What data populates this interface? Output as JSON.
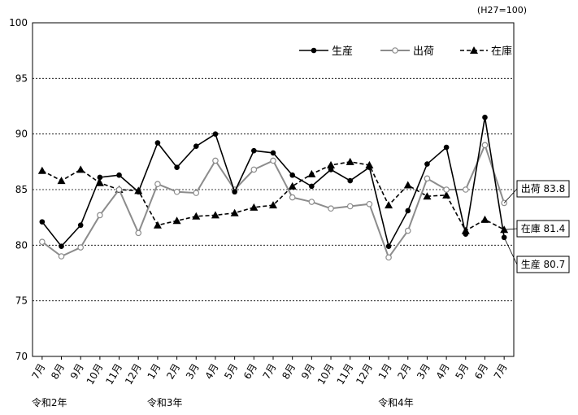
{
  "chart_data": {
    "type": "line",
    "unit_note": "(H27=100)",
    "categories": [
      "7月",
      "8月",
      "9月",
      "10月",
      "11月",
      "12月",
      "1月",
      "2月",
      "3月",
      "4月",
      "5月",
      "6月",
      "7月",
      "8月",
      "9月",
      "10月",
      "11月",
      "12月",
      "1月",
      "2月",
      "3月",
      "4月",
      "5月",
      "6月",
      "7月"
    ],
    "year_labels": [
      {
        "label": "令和2年",
        "index": 0
      },
      {
        "label": "令和3年",
        "index": 6
      },
      {
        "label": "令和4年",
        "index": 18
      }
    ],
    "ylim": [
      70,
      100
    ],
    "yticks": [
      70,
      75,
      80,
      85,
      90,
      95,
      100
    ],
    "grid": "horizontal dashed",
    "legend_position": "top-right",
    "series": [
      {
        "name": "生産",
        "style": "solid-black-filled-circle",
        "color": "#000000",
        "values": [
          82.1,
          79.9,
          81.8,
          86.1,
          86.3,
          84.8,
          89.2,
          87.0,
          88.9,
          90.0,
          84.8,
          88.5,
          88.3,
          86.3,
          85.3,
          86.8,
          85.8,
          87.0,
          79.9,
          83.1,
          87.3,
          88.8,
          81.0,
          91.5,
          80.7
        ]
      },
      {
        "name": "出荷",
        "style": "solid-gray-open-circle",
        "color": "#8c8c8c",
        "values": [
          80.3,
          79.0,
          79.8,
          82.7,
          85.0,
          81.1,
          85.5,
          84.8,
          84.7,
          87.6,
          85.0,
          86.8,
          87.6,
          84.3,
          83.9,
          83.3,
          83.5,
          83.7,
          78.9,
          81.3,
          86.0,
          85.0,
          85.0,
          89.0,
          83.8
        ]
      },
      {
        "name": "在庫",
        "style": "dashed-black-triangle",
        "color": "#000000",
        "values": [
          86.7,
          85.8,
          86.8,
          85.6,
          85.0,
          84.9,
          81.8,
          82.2,
          82.6,
          82.7,
          82.9,
          83.4,
          83.6,
          85.3,
          86.4,
          87.2,
          87.5,
          87.2,
          83.6,
          85.4,
          84.4,
          84.5,
          81.3,
          82.3,
          81.4
        ]
      }
    ],
    "end_labels": [
      {
        "series": "出荷",
        "text": "出荷 83.8"
      },
      {
        "series": "在庫",
        "text": "在庫 81.4"
      },
      {
        "series": "生産",
        "text": "生産 80.7"
      }
    ]
  }
}
